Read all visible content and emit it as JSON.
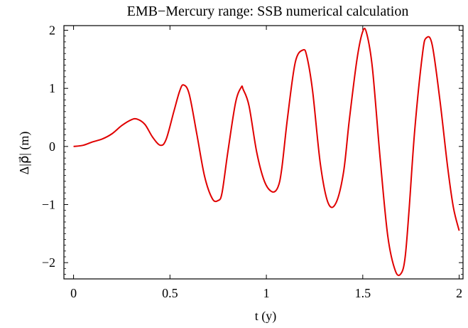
{
  "chart_data": {
    "type": "line",
    "title": "EMB−Mercury range: SSB numerical calculation",
    "xlabel": "t (y)",
    "ylabel": "Δ|ρ⃗| (m)",
    "xlim": [
      -0.05,
      2.02
    ],
    "ylim": [
      -2.28,
      2.08
    ],
    "x_ticks": [
      0,
      0.5,
      1,
      1.5,
      2
    ],
    "x_tick_labels": [
      "0",
      "0.5",
      "1",
      "1.5",
      "2"
    ],
    "y_ticks": [
      -2,
      -1,
      0,
      1,
      2
    ],
    "y_tick_labels": [
      "−2",
      "−1",
      "0",
      "1",
      "2"
    ],
    "grid": false,
    "frame": true,
    "line_color": "#e00000",
    "series": [
      {
        "x": [
          0,
          0.05,
          0.1,
          0.15,
          0.2,
          0.25,
          0.3,
          0.33,
          0.37,
          0.41,
          0.45,
          0.48,
          0.52,
          0.55,
          0.57,
          0.6,
          0.64,
          0.68,
          0.72,
          0.75,
          0.77,
          0.8,
          0.84,
          0.87,
          0.88,
          0.91,
          0.95,
          0.99,
          1.03,
          1.06,
          1.08,
          1.11,
          1.15,
          1.19,
          1.21,
          1.24,
          1.28,
          1.32,
          1.36,
          1.4,
          1.43,
          1.47,
          1.5,
          1.52,
          1.55,
          1.59,
          1.63,
          1.67,
          1.7,
          1.72,
          1.74,
          1.77,
          1.81,
          1.83,
          1.86,
          1.9,
          1.94,
          1.97,
          2.0
        ],
        "y": [
          0.0,
          0.02,
          0.08,
          0.13,
          0.22,
          0.36,
          0.46,
          0.47,
          0.38,
          0.16,
          0.02,
          0.12,
          0.6,
          0.95,
          1.06,
          0.9,
          0.2,
          -0.52,
          -0.9,
          -0.93,
          -0.8,
          -0.1,
          0.75,
          1.02,
          0.98,
          0.7,
          -0.1,
          -0.6,
          -0.78,
          -0.7,
          -0.38,
          0.5,
          1.45,
          1.66,
          1.55,
          0.95,
          -0.3,
          -0.97,
          -0.98,
          -0.45,
          0.45,
          1.5,
          1.98,
          1.95,
          1.35,
          -0.2,
          -1.55,
          -2.15,
          -2.18,
          -1.9,
          -1.1,
          0.3,
          1.6,
          1.87,
          1.75,
          0.8,
          -0.35,
          -1.05,
          -1.45
        ]
      }
    ]
  }
}
